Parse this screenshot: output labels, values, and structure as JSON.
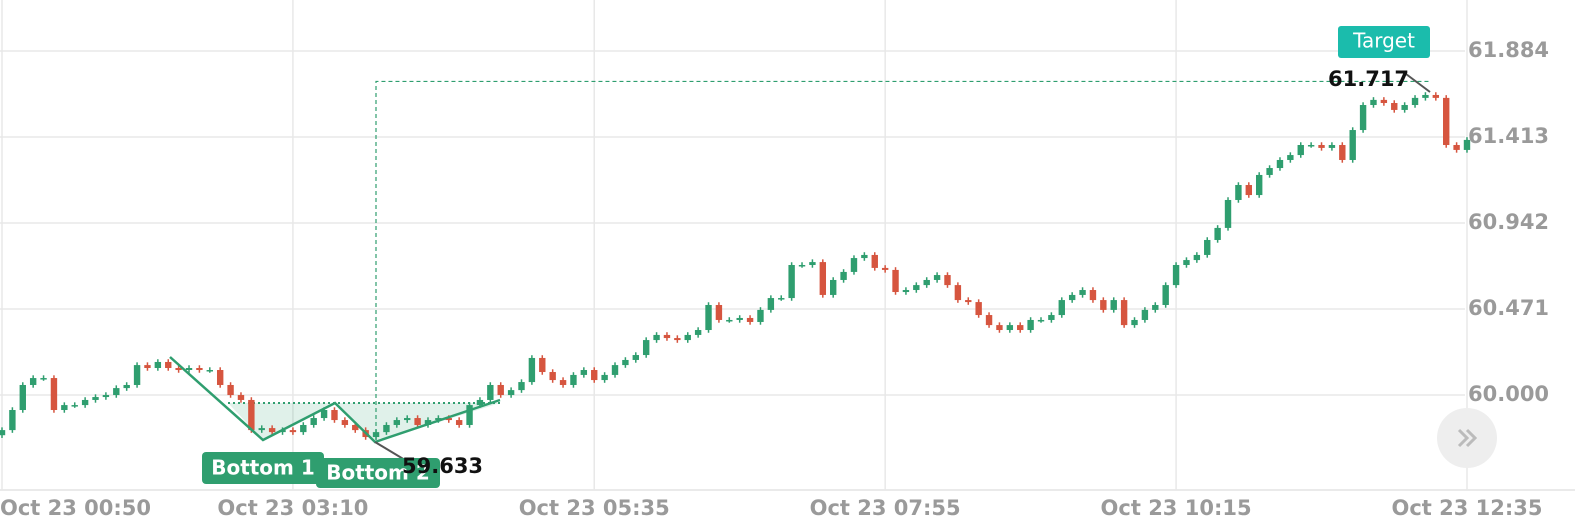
{
  "chart_data": {
    "type": "candlestick",
    "categories": [
      "Oct 23 00:50",
      null,
      null,
      null,
      null,
      null,
      null,
      null,
      null,
      null,
      null,
      null,
      null,
      null,
      null,
      null,
      null,
      null,
      null,
      null,
      null,
      null,
      null,
      null,
      null,
      null,
      null,
      null,
      "Oct 23 03:10",
      null,
      null,
      null,
      null,
      null,
      null,
      null,
      null,
      null,
      null,
      null,
      null,
      null,
      null,
      null,
      null,
      null,
      null,
      null,
      null,
      null,
      null,
      null,
      null,
      null,
      null,
      null,
      null,
      "Oct 23 05:35",
      null,
      null,
      null,
      null,
      null,
      null,
      null,
      null,
      null,
      null,
      null,
      null,
      null,
      null,
      null,
      null,
      null,
      null,
      null,
      null,
      null,
      null,
      null,
      null,
      null,
      null,
      null,
      "Oct 23 07:55",
      null,
      null,
      null,
      null,
      null,
      null,
      null,
      null,
      null,
      null,
      null,
      null,
      null,
      null,
      null,
      null,
      null,
      null,
      null,
      null,
      null,
      null,
      null,
      null,
      null,
      null,
      null,
      "Oct 23 10:15",
      null,
      null,
      null,
      null,
      null,
      null,
      null,
      null,
      null,
      null,
      null,
      null,
      null,
      null,
      null,
      null,
      null,
      null,
      null,
      null,
      null,
      null,
      null,
      null,
      null,
      null,
      null,
      "Oct 23 12:35"
    ],
    "open": [
      59.78,
      59.808,
      59.918,
      60.055,
      60.093,
      60.093,
      59.918,
      59.945,
      59.945,
      59.973,
      59.989,
      60.0,
      60.038,
      60.055,
      60.164,
      60.148,
      60.181,
      60.148,
      60.137,
      60.148,
      60.137,
      60.137,
      60.055,
      60.0,
      59.973,
      59.808,
      59.819,
      59.797,
      59.808,
      59.797,
      59.836,
      59.874,
      59.918,
      59.863,
      59.836,
      59.808,
      59.77,
      59.797,
      59.836,
      59.863,
      59.874,
      59.836,
      59.863,
      59.874,
      59.863,
      59.836,
      59.945,
      59.973,
      60.055,
      60.0,
      60.027,
      60.071,
      60.203,
      60.126,
      60.082,
      60.055,
      60.11,
      60.137,
      60.082,
      60.11,
      60.164,
      60.192,
      60.219,
      60.301,
      60.329,
      60.312,
      60.301,
      60.329,
      60.356,
      60.493,
      60.411,
      60.411,
      60.422,
      60.4,
      60.466,
      60.531,
      60.531,
      60.712,
      60.712,
      60.728,
      60.548,
      60.63,
      60.674,
      60.75,
      60.767,
      60.696,
      60.685,
      60.564,
      60.575,
      60.602,
      60.63,
      60.657,
      60.602,
      60.52,
      60.509,
      60.438,
      60.383,
      60.356,
      60.383,
      60.356,
      60.411,
      60.411,
      60.438,
      60.52,
      60.548,
      60.575,
      60.52,
      60.466,
      60.52,
      60.383,
      60.411,
      60.466,
      60.493,
      60.602,
      60.712,
      60.739,
      60.767,
      60.849,
      60.915,
      61.068,
      61.15,
      61.095,
      61.205,
      61.243,
      61.287,
      61.314,
      61.369,
      61.369,
      61.353,
      61.369,
      61.287,
      61.451,
      61.588,
      61.616,
      61.599,
      61.561,
      61.588,
      61.627,
      61.643,
      61.627,
      61.369,
      61.342
    ],
    "high": [
      59.823,
      59.933,
      60.07,
      60.108,
      60.108,
      60.108,
      59.96,
      59.96,
      59.988,
      60.004,
      60.015,
      60.053,
      60.07,
      60.179,
      60.179,
      60.196,
      60.196,
      60.163,
      60.163,
      60.163,
      60.152,
      60.152,
      60.07,
      60.015,
      59.988,
      59.834,
      59.834,
      59.823,
      59.823,
      59.851,
      59.889,
      59.933,
      59.933,
      59.878,
      59.851,
      59.823,
      59.812,
      59.851,
      59.878,
      59.889,
      59.889,
      59.878,
      59.889,
      59.889,
      59.878,
      59.96,
      59.988,
      60.07,
      60.07,
      60.042,
      60.086,
      60.218,
      60.218,
      60.141,
      60.097,
      60.125,
      60.152,
      60.152,
      60.125,
      60.179,
      60.207,
      60.234,
      60.316,
      60.344,
      60.344,
      60.327,
      60.344,
      60.371,
      60.508,
      60.508,
      60.426,
      60.437,
      60.437,
      60.481,
      60.546,
      60.546,
      60.727,
      60.727,
      60.743,
      60.743,
      60.645,
      60.689,
      60.765,
      60.782,
      60.782,
      60.711,
      60.7,
      60.59,
      60.617,
      60.645,
      60.672,
      60.672,
      60.617,
      60.535,
      60.524,
      60.453,
      60.398,
      60.398,
      60.398,
      60.426,
      60.426,
      60.453,
      60.535,
      60.563,
      60.59,
      60.59,
      60.535,
      60.535,
      60.535,
      60.426,
      60.481,
      60.508,
      60.617,
      60.727,
      60.754,
      60.782,
      60.864,
      60.93,
      61.083,
      61.165,
      61.165,
      61.22,
      61.258,
      61.302,
      61.329,
      61.384,
      61.384,
      61.384,
      61.384,
      61.384,
      61.466,
      61.603,
      61.631,
      61.631,
      61.614,
      61.603,
      61.642,
      61.658,
      61.658,
      61.642,
      61.384,
      61.412
    ],
    "low": [
      59.765,
      59.793,
      59.903,
      60.04,
      60.078,
      59.903,
      59.903,
      59.93,
      59.93,
      59.958,
      59.974,
      59.985,
      60.023,
      60.04,
      60.133,
      60.133,
      60.133,
      60.122,
      60.122,
      60.122,
      60.122,
      60.04,
      59.985,
      59.958,
      59.793,
      59.793,
      59.782,
      59.782,
      59.782,
      59.782,
      59.821,
      59.859,
      59.848,
      59.821,
      59.793,
      59.755,
      59.755,
      59.782,
      59.821,
      59.848,
      59.821,
      59.821,
      59.848,
      59.848,
      59.821,
      59.821,
      59.93,
      59.958,
      59.985,
      59.985,
      60.012,
      60.056,
      60.111,
      60.067,
      60.04,
      60.04,
      60.095,
      60.067,
      60.067,
      60.095,
      60.149,
      60.177,
      60.204,
      60.286,
      60.297,
      60.286,
      60.286,
      60.314,
      60.341,
      60.396,
      60.396,
      60.396,
      60.385,
      60.385,
      60.451,
      60.516,
      60.516,
      60.697,
      60.697,
      60.533,
      60.533,
      60.615,
      60.659,
      60.735,
      60.681,
      60.67,
      60.549,
      60.549,
      60.56,
      60.587,
      60.615,
      60.587,
      60.505,
      60.494,
      60.423,
      60.368,
      60.341,
      60.341,
      60.341,
      60.341,
      60.396,
      60.396,
      60.423,
      60.505,
      60.533,
      60.505,
      60.451,
      60.451,
      60.368,
      60.368,
      60.396,
      60.451,
      60.478,
      60.587,
      60.697,
      60.724,
      60.752,
      60.834,
      60.9,
      61.053,
      61.08,
      61.08,
      61.19,
      61.228,
      61.272,
      61.299,
      61.354,
      61.338,
      61.338,
      61.272,
      61.272,
      61.436,
      61.573,
      61.584,
      61.546,
      61.546,
      61.573,
      61.612,
      61.612,
      61.354,
      61.327,
      61.327
    ],
    "close": [
      59.808,
      59.918,
      60.055,
      60.093,
      60.093,
      59.918,
      59.945,
      59.945,
      59.973,
      59.989,
      60.0,
      60.038,
      60.055,
      60.164,
      60.148,
      60.181,
      60.148,
      60.137,
      60.148,
      60.137,
      60.137,
      60.055,
      60.0,
      59.973,
      59.808,
      59.819,
      59.797,
      59.808,
      59.797,
      59.836,
      59.874,
      59.918,
      59.863,
      59.836,
      59.808,
      59.77,
      59.797,
      59.836,
      59.863,
      59.874,
      59.836,
      59.863,
      59.874,
      59.863,
      59.836,
      59.945,
      59.973,
      60.055,
      60.0,
      60.027,
      60.071,
      60.203,
      60.126,
      60.082,
      60.055,
      60.11,
      60.137,
      60.082,
      60.11,
      60.164,
      60.192,
      60.219,
      60.301,
      60.329,
      60.312,
      60.301,
      60.329,
      60.356,
      60.493,
      60.411,
      60.411,
      60.422,
      60.4,
      60.466,
      60.531,
      60.531,
      60.712,
      60.712,
      60.728,
      60.548,
      60.63,
      60.674,
      60.75,
      60.767,
      60.696,
      60.685,
      60.564,
      60.575,
      60.602,
      60.63,
      60.657,
      60.602,
      60.52,
      60.509,
      60.438,
      60.383,
      60.356,
      60.383,
      60.356,
      60.411,
      60.411,
      60.438,
      60.52,
      60.548,
      60.575,
      60.52,
      60.466,
      60.52,
      60.383,
      60.411,
      60.466,
      60.493,
      60.602,
      60.712,
      60.739,
      60.767,
      60.849,
      60.915,
      61.068,
      61.15,
      61.095,
      61.205,
      61.243,
      61.287,
      61.314,
      61.369,
      61.369,
      61.353,
      61.369,
      61.287,
      61.451,
      61.588,
      61.616,
      61.599,
      61.561,
      61.588,
      61.627,
      61.643,
      61.627,
      61.369,
      61.342,
      61.397
    ],
    "up_color": "#2f9e6f",
    "down_color": "#d6553f",
    "ylim": [
      59.48,
      62.163
    ],
    "yticks": [
      {
        "value": 60,
        "label": "60.000"
      },
      60.471,
      60.942,
      61.413,
      61.884
    ],
    "grid": true,
    "annotations": {
      "target": {
        "label": "Target",
        "value": 61.717
      },
      "low": 59.633,
      "bottom1": "Bottom 1",
      "bottom2": "Bottom 2"
    }
  }
}
